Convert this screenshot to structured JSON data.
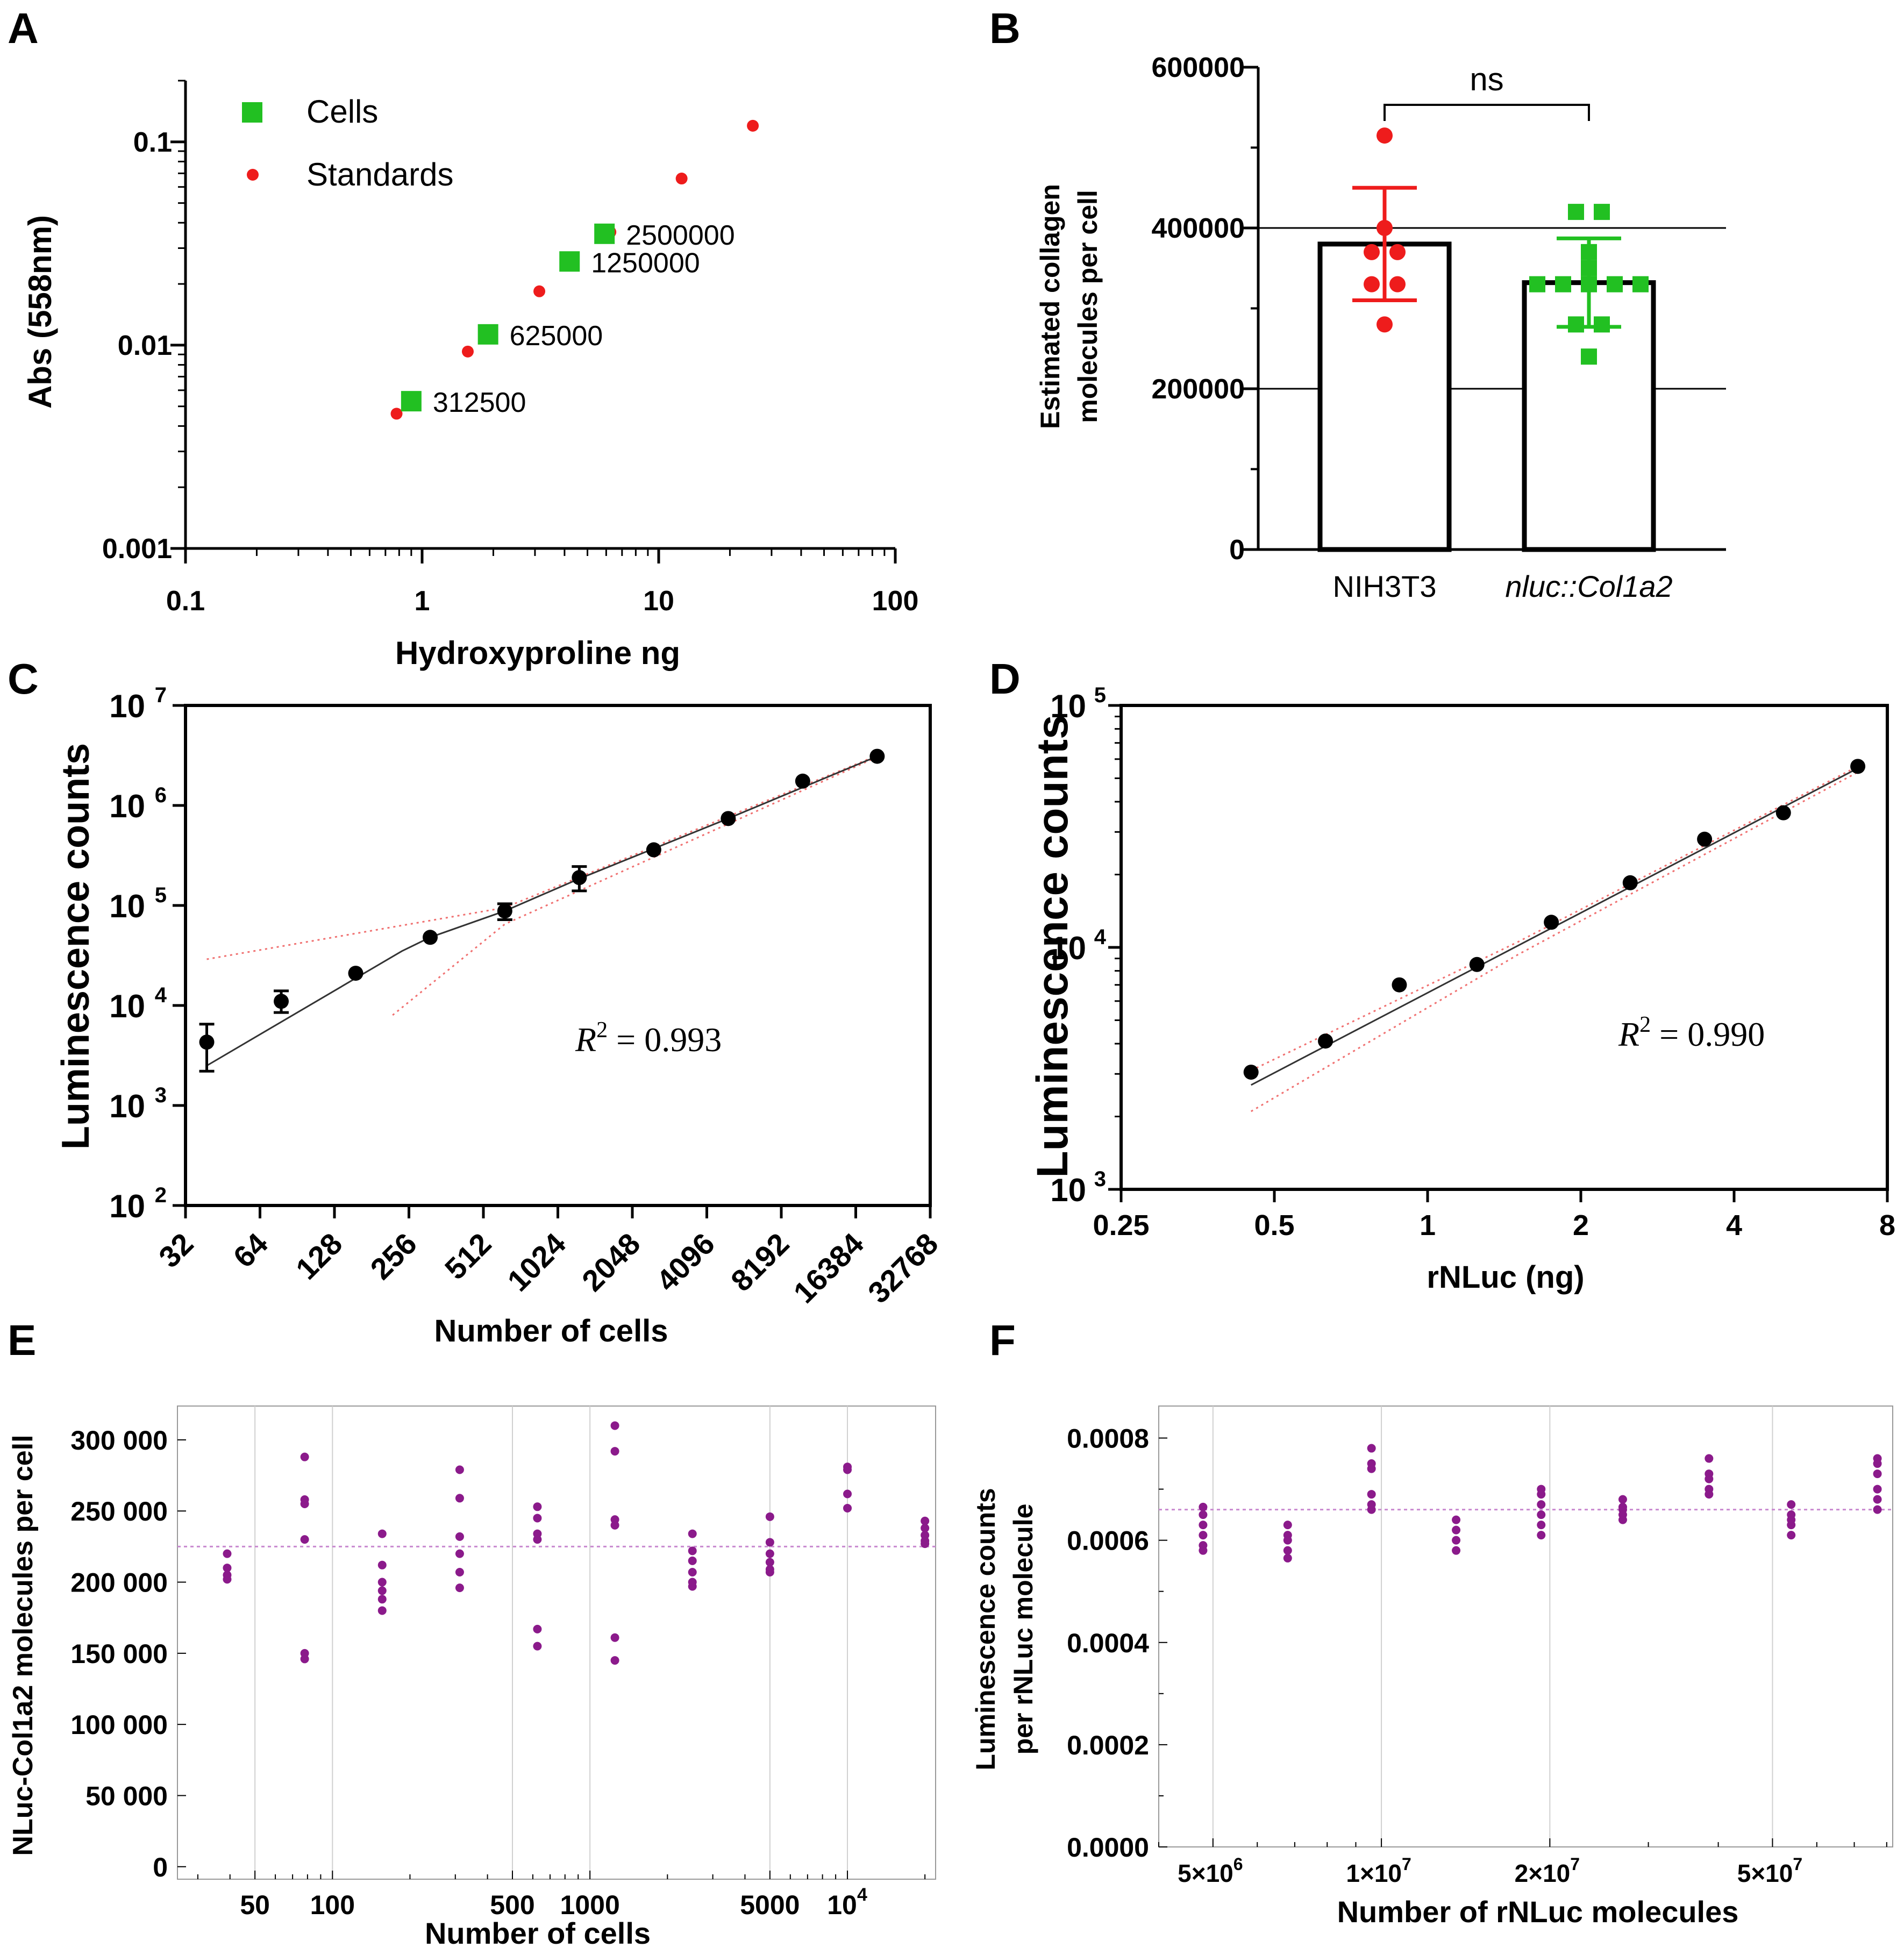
{
  "figure": {
    "panels": [
      {
        "letter": "A"
      },
      {
        "letter": "B"
      },
      {
        "letter": "C"
      },
      {
        "letter": "D"
      },
      {
        "letter": "E"
      },
      {
        "letter": "F"
      }
    ]
  },
  "chart_data": [
    {
      "panel": "A",
      "type": "scatter",
      "xscale": "log",
      "yscale": "log",
      "xlim": [
        0.1,
        100
      ],
      "ylim": [
        0.001,
        0.2
      ],
      "xticks": [
        "0.1",
        "1",
        "10",
        "100"
      ],
      "yticks": [
        "0.001",
        "0.01",
        "0.1"
      ],
      "xlabel": "Hydroxyproline ng",
      "ylabel": "Abs (558nm)",
      "legend": {
        "position": "top-left",
        "entries": [
          "Cells",
          "Standards"
        ]
      },
      "series": [
        {
          "name": "Standards",
          "color": "#ee1c1c",
          "marker": "circle",
          "points": [
            [
              0.78,
              0.0046
            ],
            [
              1.56,
              0.0093
            ],
            [
              3.13,
              0.0184
            ],
            [
              6.25,
              0.036
            ],
            [
              12.5,
              0.066
            ],
            [
              25,
              0.12
            ]
          ]
        },
        {
          "name": "Cells",
          "color": "#22c022",
          "marker": "square",
          "points": [
            [
              0.9,
              0.0053
            ],
            [
              1.9,
              0.0113
            ],
            [
              4.2,
              0.0258
            ],
            [
              5.9,
              0.0353
            ]
          ],
          "annotations": [
            "312500",
            "625000",
            "1250000",
            "2500000"
          ]
        }
      ]
    },
    {
      "panel": "B",
      "type": "bar",
      "categories": [
        "NIH3T3",
        "nluc::Col1a2"
      ],
      "values": [
        380000,
        332000
      ],
      "sd": [
        70000,
        55000
      ],
      "ylim": [
        0,
        600000
      ],
      "yticks": [
        "0",
        "200000",
        "400000",
        "600000"
      ],
      "ylabel_lines": [
        "Estimated collagen",
        "molecules per cell"
      ],
      "significance": "ns",
      "points": [
        {
          "category": "NIH3T3",
          "color": "#ee1c1c",
          "values": [
            515000,
            400000,
            370000,
            370000,
            330000,
            330000,
            280000
          ]
        },
        {
          "category": "nluc::Col1a2",
          "color": "#22c022",
          "values": [
            420000,
            420000,
            370000,
            350000,
            330000,
            330000,
            330000,
            330000,
            330000,
            280000,
            280000,
            240000
          ]
        }
      ]
    },
    {
      "panel": "C",
      "type": "scatter",
      "xscale": "log2",
      "yscale": "log",
      "xlim": [
        32,
        32768
      ],
      "ylim": [
        100,
        10000000
      ],
      "xticks": [
        "32",
        "64",
        "128",
        "256",
        "512",
        "1024",
        "2048",
        "4096",
        "8192",
        "16384",
        "32768"
      ],
      "yticks": [
        "10",
        "10",
        "10",
        "10",
        "10",
        "10"
      ],
      "ytick_exponents": [
        "2",
        "3",
        "4",
        "5",
        "6",
        "7"
      ],
      "xlabel": "Number of cells",
      "ylabel": "Luminescence counts",
      "annotation": "R",
      "annotation_exp": "2",
      "annotation_value": " = 0.993",
      "points": [
        [
          39,
          4300
        ],
        [
          78,
          11000
        ],
        [
          156,
          21000
        ],
        [
          312,
          48000
        ],
        [
          625,
          88000
        ],
        [
          1250,
          190000
        ],
        [
          2500,
          360000
        ],
        [
          5000,
          740000
        ],
        [
          10000,
          1750000
        ],
        [
          20000,
          3100000
        ]
      ],
      "errors_low": [
        2200,
        8500,
        21000,
        48000,
        72000,
        140000,
        360000,
        740000,
        1750000,
        3100000
      ],
      "errors_high": [
        6500,
        14000,
        21000,
        48000,
        104000,
        245000,
        360000,
        740000,
        1750000,
        3100000
      ],
      "fit": [
        [
          39,
          2500
        ],
        [
          240,
          35000
        ],
        [
          312,
          48000
        ],
        [
          625,
          88000
        ],
        [
          1250,
          185000
        ],
        [
          5000,
          740000
        ],
        [
          20000,
          3100000
        ]
      ],
      "ci_upper": [
        [
          39,
          29000
        ],
        [
          625,
          95000
        ],
        [
          20000,
          3150000
        ]
      ],
      "ci_lower": [
        [
          220,
          8000
        ],
        [
          625,
          65000
        ],
        [
          20000,
          3050000
        ]
      ]
    },
    {
      "panel": "D",
      "type": "scatter",
      "xscale": "log2",
      "yscale": "log",
      "xlim": [
        0.25,
        8
      ],
      "ylim": [
        1000,
        100000
      ],
      "xticks": [
        "0.25",
        "0.5",
        "1",
        "2",
        "4",
        "8"
      ],
      "yticks": [
        "10",
        "10",
        "10"
      ],
      "ytick_exponents": [
        "3",
        "4",
        "5"
      ],
      "xlabel": "rNLuc (ng)",
      "ylabel": "Luminescence counts",
      "annotation": "R",
      "annotation_exp": "2",
      "annotation_value": " = 0.990",
      "points": [
        [
          0.45,
          3050
        ],
        [
          0.63,
          4100
        ],
        [
          0.88,
          7000
        ],
        [
          1.25,
          8500
        ],
        [
          1.75,
          12700
        ],
        [
          2.5,
          18500
        ],
        [
          3.5,
          28000
        ],
        [
          5,
          36000
        ],
        [
          7,
          56000
        ]
      ],
      "fit": [
        [
          0.45,
          2700
        ],
        [
          7,
          55000
        ]
      ],
      "ci_upper": [
        [
          0.45,
          3100
        ],
        [
          1.5,
          10500
        ],
        [
          7,
          56000
        ]
      ],
      "ci_lower": [
        [
          0.45,
          2100
        ],
        [
          1.5,
          9300
        ],
        [
          7,
          53000
        ]
      ]
    },
    {
      "panel": "E",
      "type": "scatter",
      "xscale": "log",
      "xlim": [
        25,
        22000
      ],
      "ylim": [
        0,
        320000
      ],
      "xticks": [
        "50",
        "100",
        "500",
        "1000",
        "5000",
        "10"
      ],
      "xtick_exponent": "4",
      "yticks": [
        "0",
        "50 000",
        "100 000",
        "150 000",
        "200 000",
        "250 000",
        "300 000"
      ],
      "xlabel": "Number of cells",
      "ylabel": "NLuc-Col1a2 molecules per cell",
      "reference_line": 225000,
      "color": "#8b1a8b",
      "groups": [
        {
          "x": 39,
          "values": [
            220000,
            210000,
            205000,
            202000
          ]
        },
        {
          "x": 78,
          "values": [
            288000,
            258000,
            255000,
            230000,
            150000,
            146000
          ]
        },
        {
          "x": 156,
          "values": [
            234000,
            212000,
            200000,
            194000,
            188000,
            180000
          ]
        },
        {
          "x": 312,
          "values": [
            279000,
            259000,
            232000,
            220000,
            207000,
            196000
          ]
        },
        {
          "x": 625,
          "values": [
            253000,
            245000,
            234000,
            230000,
            167000,
            155000
          ]
        },
        {
          "x": 1250,
          "values": [
            310000,
            292000,
            244000,
            240000,
            161000,
            145000
          ]
        },
        {
          "x": 2500,
          "values": [
            234000,
            222000,
            215000,
            207000,
            200000,
            197000
          ]
        },
        {
          "x": 5000,
          "values": [
            246000,
            228000,
            220000,
            214000,
            209000,
            207000
          ]
        },
        {
          "x": 10000,
          "values": [
            281000,
            279000,
            262000,
            252000
          ]
        },
        {
          "x": 20000,
          "values": [
            243000,
            238000,
            233000,
            229000,
            227000
          ]
        }
      ]
    },
    {
      "panel": "F",
      "type": "scatter",
      "xscale": "log",
      "xlim": [
        4000000,
        72000000
      ],
      "ylim": [
        0,
        0.00085
      ],
      "xticks": [
        "5",
        "1",
        "2",
        "5"
      ],
      "xtick_suffix": "×10",
      "xtick_exponents": [
        "6",
        "7",
        "7",
        "7"
      ],
      "yticks": [
        "0.0000",
        "0.0002",
        "0.0004",
        "0.0006",
        "0.0008"
      ],
      "xlabel": "Number of rNLuc molecules",
      "ylabel_lines": [
        "Luminescence counts",
        "per rNLuc molecule"
      ],
      "reference_line": 0.00066,
      "color": "#8b1a8b",
      "groups": [
        {
          "x": 4800000,
          "values": [
            0.000665,
            0.00065,
            0.00063,
            0.00061,
            0.00059,
            0.00058
          ]
        },
        {
          "x": 6800000,
          "values": [
            0.00063,
            0.00061,
            0.0006,
            0.00058,
            0.000565
          ]
        },
        {
          "x": 9600000,
          "values": [
            0.00078,
            0.00075,
            0.00074,
            0.00069,
            0.00067,
            0.00066
          ]
        },
        {
          "x": 13600000,
          "values": [
            0.00064,
            0.00062,
            0.0006,
            0.00058
          ]
        },
        {
          "x": 19300000,
          "values": [
            0.0007,
            0.00069,
            0.00067,
            0.00065,
            0.00063,
            0.00061
          ]
        },
        {
          "x": 27000000,
          "values": [
            0.00068,
            0.000665,
            0.00066,
            0.00065,
            0.00064
          ]
        },
        {
          "x": 38500000,
          "values": [
            0.00076,
            0.00073,
            0.00072,
            0.0007,
            0.00069
          ]
        },
        {
          "x": 54000000,
          "values": [
            0.00067,
            0.00065,
            0.00064,
            0.00063,
            0.00061
          ]
        },
        {
          "x": 77000000,
          "values": [
            0.00076,
            0.00075,
            0.00073,
            0.0007,
            0.00068,
            0.00066
          ]
        }
      ]
    }
  ]
}
